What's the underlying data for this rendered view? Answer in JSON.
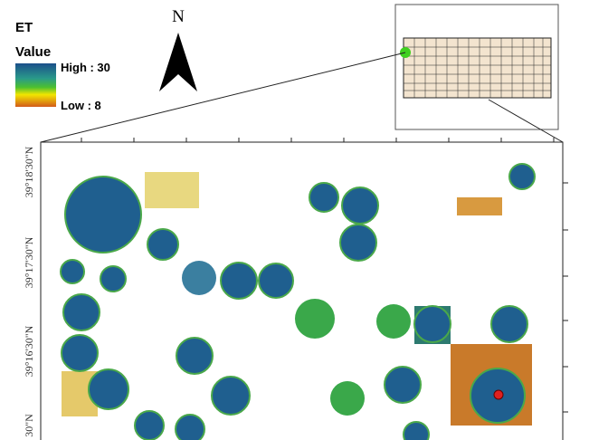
{
  "legend": {
    "title": "ET",
    "subtitle": "Value",
    "high": "High : 30",
    "low": "Low : 8"
  },
  "north_arrow": "N",
  "latitude_labels": [
    "39°18'30\"N",
    "39°17'30\"N",
    "39°16'30\"N",
    "30\"N"
  ]
}
